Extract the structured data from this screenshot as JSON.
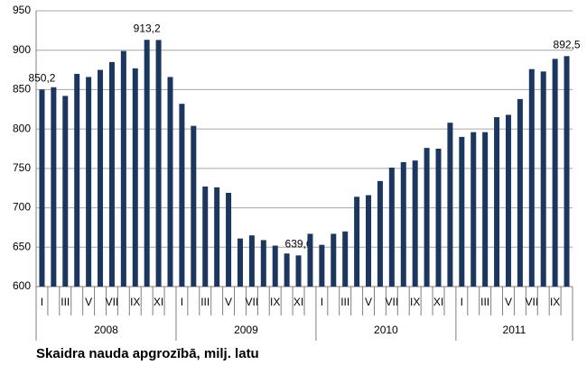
{
  "chart_data": {
    "type": "bar",
    "title": "Skaidra nauda apgrozībā, milj. latu",
    "categories": [
      "I",
      null,
      "III",
      null,
      "V",
      null,
      "VII",
      null,
      "IX",
      null,
      "XI",
      null,
      "I",
      null,
      "III",
      null,
      "V",
      null,
      "VII",
      null,
      "IX",
      null,
      "XI",
      null,
      "I",
      null,
      "III",
      null,
      "V",
      null,
      "VII",
      null,
      "IX",
      null,
      "XI",
      null,
      "I",
      null,
      "III",
      null,
      "V",
      null,
      "VII",
      null,
      "IX",
      null
    ],
    "year_labels": [
      "2008",
      "2009",
      "2010",
      "2011"
    ],
    "values": [
      850.2,
      853,
      842,
      870,
      866,
      875,
      885,
      899,
      877,
      913.2,
      913,
      866,
      832,
      804,
      727,
      726,
      719,
      661,
      665,
      659,
      652,
      642,
      639.6,
      667,
      653,
      667,
      670,
      714,
      716,
      734,
      751,
      758,
      760,
      776,
      775,
      808,
      790,
      796,
      796,
      815,
      818,
      838,
      876,
      873,
      889,
      892.5
    ],
    "value_labels": [
      "850,2",
      null,
      null,
      null,
      null,
      null,
      null,
      null,
      null,
      "913,2",
      null,
      null,
      null,
      null,
      null,
      null,
      null,
      null,
      null,
      null,
      null,
      null,
      "639,6",
      null,
      null,
      null,
      null,
      null,
      null,
      null,
      null,
      null,
      null,
      null,
      null,
      null,
      null,
      null,
      null,
      null,
      null,
      null,
      null,
      null,
      null,
      "892,5"
    ],
    "color": "#1b365f",
    "ylim": [
      600,
      950
    ],
    "yticks": [
      600,
      650,
      700,
      750,
      800,
      850,
      900,
      950
    ],
    "grid": true
  }
}
